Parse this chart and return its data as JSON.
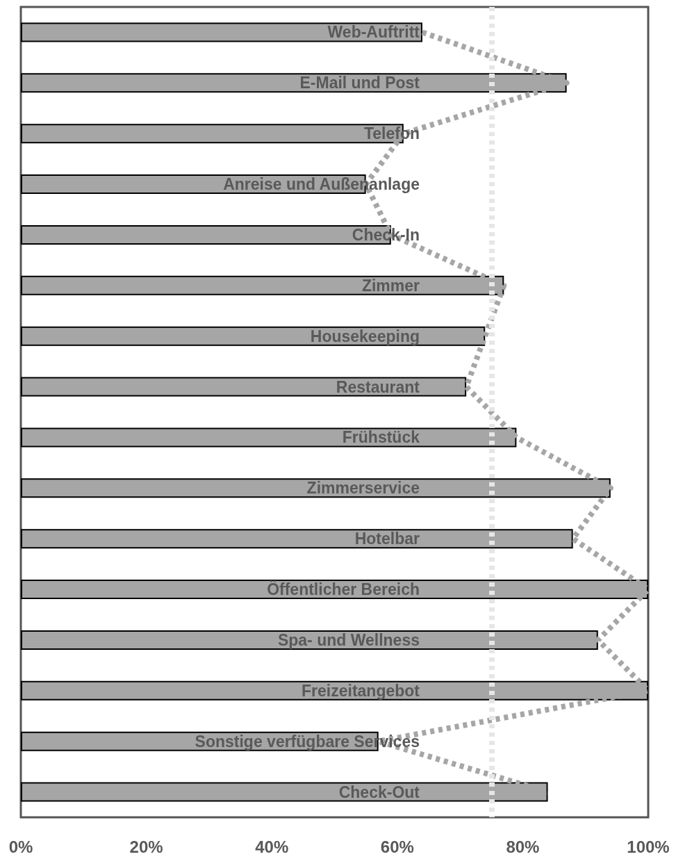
{
  "chart_data": {
    "type": "bar",
    "orientation": "horizontal",
    "categories": [
      "Web-Auftritt",
      "E-Mail und Post",
      "Telefon",
      "Anreise und Außenanlage",
      "Check-In",
      "Zimmer",
      "Housekeeping",
      "Restaurant",
      "Frühstück",
      "Zimmerservice",
      "Hotelbar",
      "Öffentlicher Bereich",
      "Spa- und Wellness",
      "Freizeitangebot",
      "Sonstige verfügbare Services",
      "Check-Out"
    ],
    "series": [
      {
        "color": "#a6a6a6",
        "values": [
          64,
          87,
          61,
          55,
          59,
          77,
          74,
          71,
          79,
          94,
          88,
          100,
          92,
          100,
          57,
          84
        ]
      },
      {
        "type": "line",
        "color": "#a6a6a6",
        "line_style": "dotted",
        "marker": "none",
        "values": [
          64,
          87,
          61,
          55,
          59,
          77,
          74,
          71,
          79,
          94,
          88,
          100,
          92,
          100,
          57,
          84
        ]
      }
    ],
    "xlim": [
      0,
      100
    ],
    "xticks": [
      {
        "value": 0,
        "label": "0%"
      },
      {
        "value": 20,
        "label": "20%"
      },
      {
        "value": 40,
        "label": "40%"
      },
      {
        "value": 60,
        "label": "60%"
      },
      {
        "value": 80,
        "label": "80%"
      },
      {
        "value": 100,
        "label": "100%"
      }
    ],
    "ref_lines": [
      {
        "axis": "x",
        "value": 75,
        "label": null,
        "color": "#e6e6e6",
        "line_style": "dotted"
      }
    ],
    "grid": false
  }
}
